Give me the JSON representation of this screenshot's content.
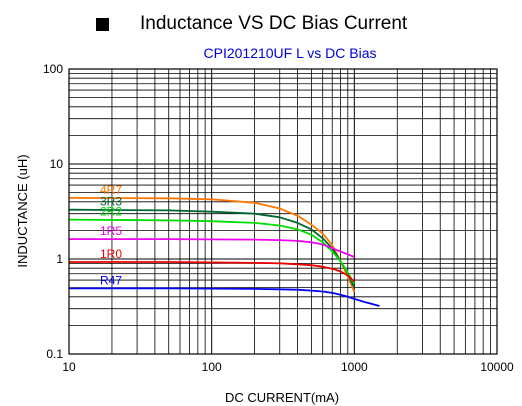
{
  "header": {
    "bullet_icon": "black-square-icon",
    "title": "Inductance VS DC Bias Current"
  },
  "chart_data": {
    "type": "line",
    "title": "CPI201210UF L vs DC Bias",
    "title_color": "#0000dd",
    "xlabel": "DC CURRENT(mA)",
    "ylabel": "INDUCTANCE (uH)",
    "xscale": "log",
    "yscale": "log",
    "xlim": [
      10,
      10000
    ],
    "ylim": [
      0.1,
      100
    ],
    "x_ticks": [
      10,
      100,
      1000,
      10000
    ],
    "x_tick_labels": [
      "10",
      "100",
      "1000",
      "10000"
    ],
    "y_ticks": [
      0.1,
      1,
      10,
      100
    ],
    "y_tick_labels": [
      "0.1",
      "1",
      "10",
      "100"
    ],
    "grid": true,
    "series": [
      {
        "name": "4R7",
        "color": "#ff7700",
        "x": [
          10,
          50,
          100,
          200,
          300,
          400,
          500,
          600,
          700,
          800,
          900,
          1000
        ],
        "y": [
          4.4,
          4.35,
          4.25,
          3.9,
          3.4,
          2.85,
          2.3,
          1.85,
          1.4,
          0.95,
          0.65,
          0.45
        ]
      },
      {
        "name": "3R3",
        "color": "#006633",
        "x": [
          10,
          50,
          100,
          200,
          300,
          400,
          500,
          600,
          700,
          800,
          900,
          1000
        ],
        "y": [
          3.3,
          3.25,
          3.15,
          3.0,
          2.75,
          2.4,
          2.05,
          1.65,
          1.3,
          0.95,
          0.7,
          0.5
        ]
      },
      {
        "name": "2R2",
        "color": "#00dd00",
        "x": [
          10,
          50,
          100,
          200,
          300,
          400,
          500,
          600,
          700,
          800,
          900,
          1000
        ],
        "y": [
          2.6,
          2.55,
          2.5,
          2.4,
          2.25,
          2.05,
          1.8,
          1.5,
          1.2,
          0.95,
          0.72,
          0.55
        ]
      },
      {
        "name": "1R5",
        "color": "#ee00ee",
        "x": [
          10,
          50,
          100,
          200,
          300,
          400,
          500,
          600,
          700,
          800,
          900,
          1000
        ],
        "y": [
          1.62,
          1.62,
          1.61,
          1.6,
          1.58,
          1.55,
          1.5,
          1.42,
          1.3,
          1.2,
          1.12,
          1.05
        ]
      },
      {
        "name": "1R0",
        "color": "#ee0000",
        "x": [
          10,
          50,
          100,
          200,
          300,
          400,
          500,
          600,
          700,
          800,
          900,
          1000
        ],
        "y": [
          0.93,
          0.93,
          0.92,
          0.91,
          0.9,
          0.88,
          0.86,
          0.83,
          0.79,
          0.74,
          0.67,
          0.58
        ]
      },
      {
        "name": "R47",
        "color": "#0000ee",
        "x": [
          10,
          50,
          100,
          200,
          300,
          400,
          500,
          600,
          700,
          800,
          900,
          1000,
          1200,
          1500
        ],
        "y": [
          0.49,
          0.49,
          0.488,
          0.485,
          0.48,
          0.475,
          0.465,
          0.455,
          0.44,
          0.42,
          0.4,
          0.38,
          0.35,
          0.32
        ]
      }
    ]
  }
}
